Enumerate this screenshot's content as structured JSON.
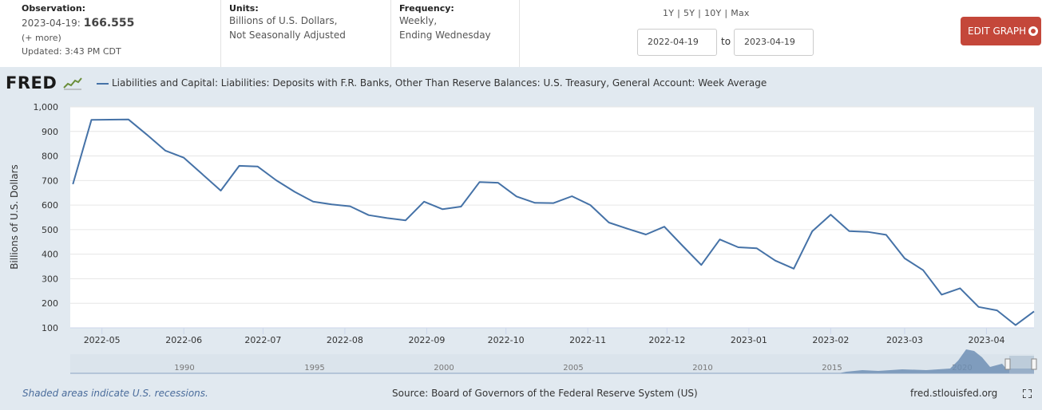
{
  "header": {
    "observation_label": "Observation:",
    "observation_date": "2023-04-19:",
    "observation_value": "166.555",
    "more_link": "(+ more)",
    "updated": "Updated: 3:43 PM CDT",
    "units_label": "Units:",
    "units_line1": "Billions of U.S. Dollars,",
    "units_line2": "Not Seasonally Adjusted",
    "frequency_label": "Frequency:",
    "frequency_line1": "Weekly,",
    "frequency_line2": "Ending Wednesday",
    "range_1y": "1Y",
    "range_5y": "5Y",
    "range_10y": "10Y",
    "range_max": "Max",
    "range_sep": "|",
    "start_date": "2022-04-19",
    "to_label": "to",
    "end_date": "2023-04-19",
    "edit_button": "EDIT GRAPH"
  },
  "brand": {
    "logo_text": "FRED"
  },
  "footer": {
    "recession_note": "Shaded areas indicate U.S. recessions.",
    "source": "Source: Board of Governors of the Federal Reserve System (US)",
    "url": "fred.stlouisfed.org"
  },
  "colors": {
    "series": "#4572a7",
    "plot_bg": "#ffffff",
    "outer_bg": "#e1e9f0",
    "edit_button": "#c4473a"
  },
  "navigator": {
    "year_labels": [
      "1990",
      "1995",
      "2000",
      "2005",
      "2010",
      "2015",
      "2020"
    ]
  },
  "chart_data": {
    "type": "line",
    "legend": "Liabilities and Capital: Liabilities: Deposits with F.R. Banks, Other Than Reserve Balances: U.S. Treasury, General Account: Week Average",
    "ylabel": "Billions of U.S. Dollars",
    "xlabel": "",
    "ylim": [
      100,
      1000
    ],
    "yticks": [
      100,
      200,
      300,
      400,
      500,
      600,
      700,
      800,
      900,
      1000
    ],
    "ytick_labels": [
      "100",
      "200",
      "300",
      "400",
      "500",
      "600",
      "700",
      "800",
      "900",
      "1,000"
    ],
    "grid": true,
    "xlim": [
      "2022-04-19",
      "2023-04-19"
    ],
    "xticks": [
      "2022-05-01",
      "2022-06-01",
      "2022-07-01",
      "2022-08-01",
      "2022-09-01",
      "2022-10-01",
      "2022-11-01",
      "2022-12-01",
      "2023-01-01",
      "2023-02-01",
      "2023-03-01",
      "2023-04-01"
    ],
    "xtick_labels": [
      "2022-05",
      "2022-06",
      "2022-07",
      "2022-08",
      "2022-09",
      "2022-10",
      "2022-11",
      "2022-12",
      "2023-01",
      "2023-02",
      "2023-03",
      "2023-04"
    ],
    "series": [
      {
        "name": "Liabilities and Capital: Liabilities: Deposits with F.R. Banks, Other Than Reserve Balances: U.S. Treasury, General Account: Week Average",
        "x": [
          "2022-04-20",
          "2022-04-27",
          "2022-05-04",
          "2022-05-11",
          "2022-05-18",
          "2022-05-25",
          "2022-06-01",
          "2022-06-08",
          "2022-06-15",
          "2022-06-22",
          "2022-06-29",
          "2022-07-06",
          "2022-07-13",
          "2022-07-20",
          "2022-07-27",
          "2022-08-03",
          "2022-08-10",
          "2022-08-17",
          "2022-08-24",
          "2022-08-31",
          "2022-09-07",
          "2022-09-14",
          "2022-09-21",
          "2022-09-28",
          "2022-10-05",
          "2022-10-12",
          "2022-10-19",
          "2022-10-26",
          "2022-11-02",
          "2022-11-09",
          "2022-11-16",
          "2022-11-23",
          "2022-11-30",
          "2022-12-07",
          "2022-12-14",
          "2022-12-21",
          "2022-12-28",
          "2023-01-04",
          "2023-01-11",
          "2023-01-18",
          "2023-01-25",
          "2023-02-01",
          "2023-02-08",
          "2023-02-15",
          "2023-02-22",
          "2023-03-01",
          "2023-03-08",
          "2023-03-15",
          "2023-03-22",
          "2023-03-29",
          "2023-04-05",
          "2023-04-12",
          "2023-04-19"
        ],
        "values": [
          685,
          947,
          948,
          949,
          887,
          822,
          793,
          726,
          659,
          760,
          757,
          701,
          654,
          614,
          603,
          595,
          559,
          547,
          538,
          614,
          583,
          594,
          694,
          691,
          635,
          609,
          608,
          636,
          600,
          529,
          504,
          480,
          512,
          433,
          356,
          460,
          428,
          424,
          374,
          341,
          493,
          561,
          494,
          491,
          479,
          383,
          335,
          235,
          261,
          185,
          171,
          111,
          167
        ]
      }
    ]
  }
}
